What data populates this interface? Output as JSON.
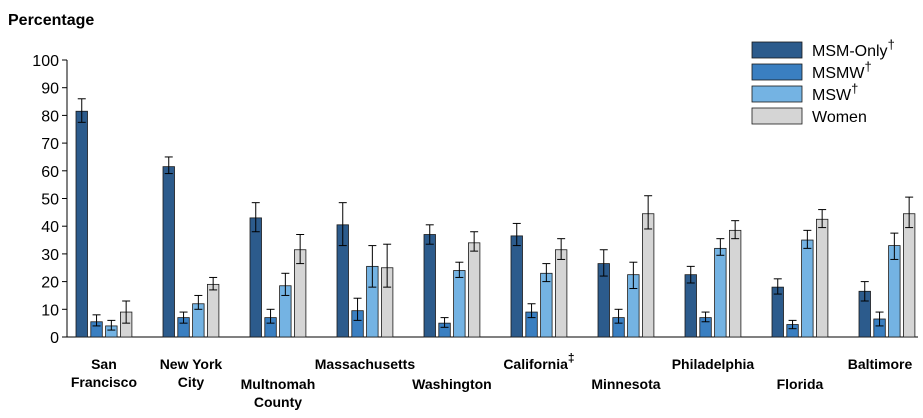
{
  "chart_data": {
    "type": "bar",
    "ylabel": "Percentage",
    "xlabel": "",
    "ylim": [
      0,
      100
    ],
    "yticks": [
      0,
      10,
      20,
      30,
      40,
      50,
      60,
      70,
      80,
      90,
      100
    ],
    "categories": [
      {
        "lines": [
          "San",
          "Francisco"
        ],
        "sup": ""
      },
      {
        "lines": [
          "New York",
          "City"
        ],
        "sup": ""
      },
      {
        "lines": [
          "Multnomah",
          "County"
        ],
        "sup": ""
      },
      {
        "lines": [
          "Massachusetts"
        ],
        "sup": ""
      },
      {
        "lines": [
          "Washington"
        ],
        "sup": ""
      },
      {
        "lines": [
          "California"
        ],
        "sup": "‡"
      },
      {
        "lines": [
          "Minnesota"
        ],
        "sup": ""
      },
      {
        "lines": [
          "Philadelphia"
        ],
        "sup": ""
      },
      {
        "lines": [
          "Florida"
        ],
        "sup": ""
      },
      {
        "lines": [
          "Baltimore"
        ],
        "sup": ""
      }
    ],
    "series": [
      {
        "name": "MSM-Only",
        "sup": "†",
        "color": "#2c5b8c",
        "values": [
          81.5,
          61.5,
          43,
          40.5,
          37,
          36.5,
          26.5,
          22.5,
          18,
          16.5
        ],
        "errors": [
          [
            77.5,
            86
          ],
          [
            59,
            65
          ],
          [
            38,
            48.5
          ],
          [
            33,
            48.5
          ],
          [
            33.5,
            40.5
          ],
          [
            33,
            41
          ],
          [
            22,
            31.5
          ],
          [
            19.5,
            25.5
          ],
          [
            15.5,
            21
          ],
          [
            13,
            20
          ]
        ]
      },
      {
        "name": "MSMW",
        "sup": "†",
        "color": "#3a7fc1",
        "values": [
          5.5,
          7,
          7,
          9.5,
          5,
          9,
          7,
          7,
          4.5,
          6.5
        ],
        "errors": [
          [
            4,
            8
          ],
          [
            5,
            9
          ],
          [
            5,
            10
          ],
          [
            6,
            14
          ],
          [
            3.5,
            7
          ],
          [
            7,
            12
          ],
          [
            5,
            10
          ],
          [
            5.5,
            9
          ],
          [
            3,
            6
          ],
          [
            4,
            9
          ]
        ]
      },
      {
        "name": "MSW",
        "sup": "†",
        "color": "#74b3e3",
        "values": [
          4,
          12,
          18.5,
          25.5,
          24,
          23,
          22.5,
          32,
          35,
          33
        ],
        "errors": [
          [
            2.5,
            6
          ],
          [
            10,
            15
          ],
          [
            15,
            23
          ],
          [
            18,
            33
          ],
          [
            21.5,
            27
          ],
          [
            20,
            26.5
          ],
          [
            17.5,
            27
          ],
          [
            29.5,
            35.5
          ],
          [
            32,
            38.5
          ],
          [
            28,
            37.5
          ]
        ]
      },
      {
        "name": "Women",
        "sup": "",
        "color": "#d5d5d5",
        "values": [
          9,
          19,
          31.5,
          25,
          34,
          31.5,
          44.5,
          38.5,
          42.5,
          44.5
        ],
        "errors": [
          [
            5,
            13
          ],
          [
            17,
            21.5
          ],
          [
            26.5,
            37
          ],
          [
            18,
            33.5
          ],
          [
            31,
            38
          ],
          [
            28,
            35.5
          ],
          [
            39,
            51
          ],
          [
            35.5,
            42
          ],
          [
            39.5,
            46
          ],
          [
            39.5,
            50.5
          ]
        ]
      }
    ],
    "legend_position": "top-right",
    "grid": false
  }
}
